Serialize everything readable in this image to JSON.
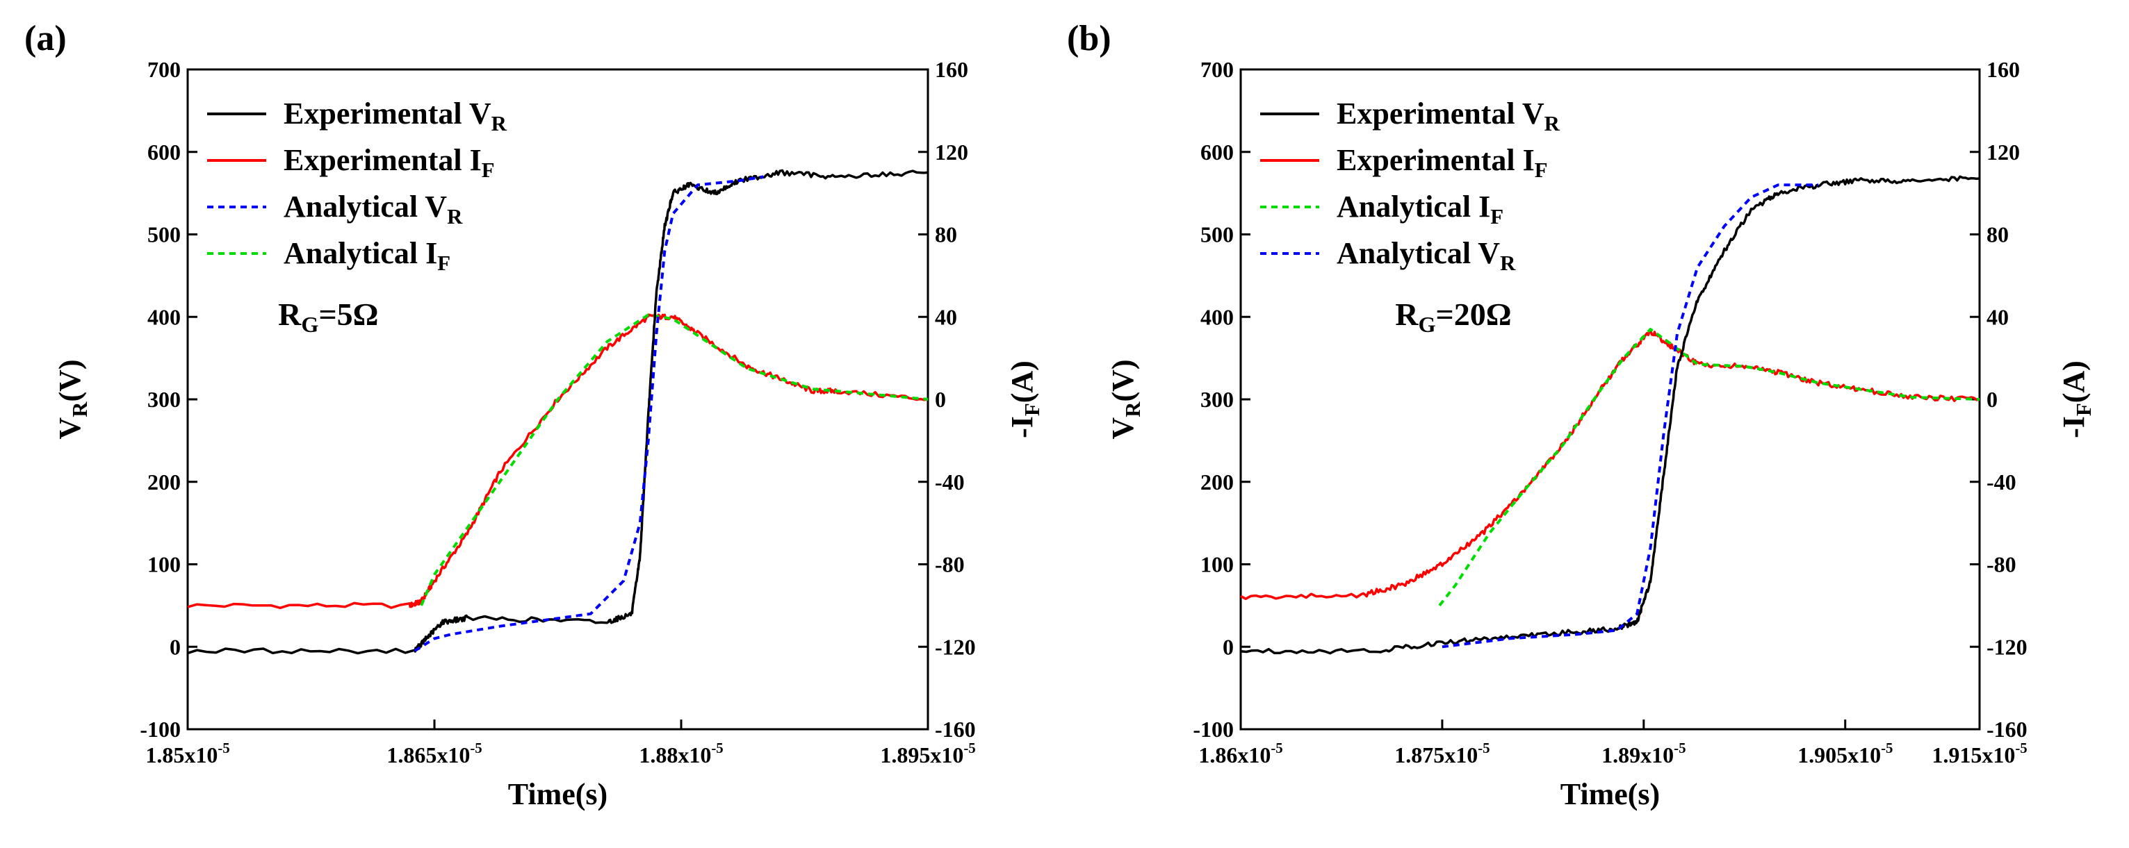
{
  "chart_data": [
    {
      "type": "line",
      "panel_label": "(a)",
      "xlabel": "Time(s)",
      "ylabel": "V",
      "ylabel_sub": "R",
      "ylabel_unit": "(V)",
      "y2label": "-I",
      "y2label_sub": "F",
      "y2label_unit": "(A)",
      "xlim": [
        1.85e-05,
        1.895e-05
      ],
      "ylim": [
        -100,
        700
      ],
      "y2lim": [
        -160,
        160
      ],
      "xticks": [
        {
          "value": 1.85e-05,
          "mant": "1.85x10",
          "exp": "-5"
        },
        {
          "value": 1.865e-05,
          "mant": "1.865x10",
          "exp": "-5"
        },
        {
          "value": 1.88e-05,
          "mant": "1.88x10",
          "exp": "-5"
        },
        {
          "value": 1.895e-05,
          "mant": "1.895x10",
          "exp": "-5"
        }
      ],
      "yticks": [
        "-100",
        "0",
        "100",
        "200",
        "300",
        "400",
        "500",
        "600",
        "700"
      ],
      "y2ticks": [
        "-160",
        "-120",
        "-80",
        "-40",
        "0",
        "40",
        "80",
        "120",
        "160"
      ],
      "annotation": {
        "main": "R",
        "sub": "G",
        "tail": "=5Ω",
        "x": 1.8555e-05,
        "y": 390
      },
      "legend_position": "top-left",
      "legend": [
        {
          "text": "Experimental V",
          "sub": "R",
          "color": "#000000",
          "dash": "solid"
        },
        {
          "text": "Experimental I",
          "sub": "F",
          "color": "#ff0000",
          "dash": "solid"
        },
        {
          "text": "Analytical V",
          "sub": "R",
          "color": "#0000ff",
          "dash": "dotted"
        },
        {
          "text": "Analytical I",
          "sub": "F",
          "color": "#00dd00",
          "dash": "dotted"
        }
      ],
      "series": [
        {
          "name": "Experimental I",
          "axis": "y2",
          "color": "#ff0000",
          "style": "solid",
          "noise": 1.2,
          "x": [
            1.85e-05,
            1.8635e-05,
            1.8642e-05,
            1.865e-05,
            1.867e-05,
            1.869e-05,
            1.8725e-05,
            1.8755e-05,
            1.878e-05,
            1.8795e-05,
            1.881e-05,
            1.884e-05,
            1.886e-05,
            1.888e-05,
            1.8895e-05,
            1.895e-05
          ],
          "y": [
            -100,
            -100,
            -98,
            -88,
            -65,
            -35,
            0,
            25,
            40,
            40,
            32,
            16,
            10,
            4,
            4,
            0
          ]
        },
        {
          "name": "Analytical I",
          "axis": "y2",
          "color": "#00dd00",
          "style": "dotted",
          "noise": 0,
          "x": [
            1.8642e-05,
            1.865e-05,
            1.8725e-05,
            1.8755e-05,
            1.878e-05,
            1.8795e-05,
            1.881e-05,
            1.884e-05,
            1.886e-05,
            1.888e-05,
            1.8895e-05,
            1.895e-05
          ],
          "y": [
            -100,
            -85,
            0,
            28,
            41,
            39,
            31,
            15,
            10,
            5,
            4,
            0
          ]
        },
        {
          "name": "Experimental V",
          "axis": "y",
          "color": "#000000",
          "style": "solid",
          "noise": 3,
          "x": [
            1.85e-05,
            1.8638e-05,
            1.8645e-05,
            1.8655e-05,
            1.867e-05,
            1.8755e-05,
            1.877e-05,
            1.8775e-05,
            1.878e-05,
            1.8785e-05,
            1.879e-05,
            1.8795e-05,
            1.8805e-05,
            1.882e-05,
            1.8835e-05,
            1.886e-05,
            1.8895e-05,
            1.895e-05
          ],
          "y": [
            -5,
            -5,
            10,
            30,
            35,
            30,
            40,
            110,
            280,
            430,
            510,
            550,
            560,
            550,
            565,
            575,
            570,
            575
          ]
        },
        {
          "name": "Analytical V",
          "axis": "y",
          "color": "#0000ff",
          "style": "dotted",
          "noise": 0,
          "x": [
            1.8638e-05,
            1.865e-05,
            1.866e-05,
            1.869e-05,
            1.8745e-05,
            1.8765e-05,
            1.8775e-05,
            1.878e-05,
            1.8785e-05,
            1.879e-05,
            1.8795e-05,
            1.881e-05,
            1.8835e-05,
            1.885e-05
          ],
          "y": [
            -5,
            10,
            15,
            25,
            40,
            80,
            150,
            250,
            380,
            480,
            525,
            560,
            565,
            570
          ]
        }
      ]
    },
    {
      "type": "line",
      "panel_label": "(b)",
      "xlabel": "Time(s)",
      "ylabel": "V",
      "ylabel_sub": "R",
      "ylabel_unit": "(V)",
      "y2label": "-I",
      "y2label_sub": "F",
      "y2label_unit": "(A)",
      "xlim": [
        1.86e-05,
        1.915e-05
      ],
      "ylim": [
        -100,
        700
      ],
      "y2lim": [
        -160,
        160
      ],
      "xticks": [
        {
          "value": 1.86e-05,
          "mant": "1.86x10",
          "exp": "-5"
        },
        {
          "value": 1.875e-05,
          "mant": "1.875x10",
          "exp": "-5"
        },
        {
          "value": 1.89e-05,
          "mant": "1.89x10",
          "exp": "-5"
        },
        {
          "value": 1.905e-05,
          "mant": "1.905x10",
          "exp": "-5"
        },
        {
          "value": 1.915e-05,
          "mant": "1.915x10",
          "exp": "-5"
        }
      ],
      "yticks": [
        "-100",
        "0",
        "100",
        "200",
        "300",
        "400",
        "500",
        "600",
        "700"
      ],
      "y2ticks": [
        "-160",
        "-120",
        "-80",
        "-40",
        "0",
        "40",
        "80",
        "120",
        "160"
      ],
      "annotation": {
        "main": "R",
        "sub": "G",
        "tail": "=20Ω",
        "x": 1.8715e-05,
        "y": 390
      },
      "legend_position": "top-left",
      "legend": [
        {
          "text": "Experimental V",
          "sub": "R",
          "color": "#000000",
          "dash": "solid"
        },
        {
          "text": "Experimental I",
          "sub": "F",
          "color": "#ff0000",
          "dash": "solid"
        },
        {
          "text": "Analytical I",
          "sub": "F",
          "color": "#00dd00",
          "dash": "dotted"
        },
        {
          "text": "Analytical V",
          "sub": "R",
          "color": "#0000ff",
          "dash": "dotted"
        }
      ],
      "series": [
        {
          "name": "Experimental I",
          "axis": "y2",
          "color": "#ff0000",
          "style": "solid",
          "noise": 1.2,
          "x": [
            1.86e-05,
            1.869e-05,
            1.872e-05,
            1.875e-05,
            1.878e-05,
            1.881e-05,
            1.884e-05,
            1.8865e-05,
            1.8885e-05,
            1.8905e-05,
            1.892e-05,
            1.894e-05,
            1.8975e-05,
            1.9e-05,
            1.903e-05,
            1.906e-05,
            1.91e-05,
            1.915e-05
          ],
          "y": [
            -96,
            -95,
            -90,
            -80,
            -65,
            -45,
            -22,
            2,
            20,
            33,
            26,
            17,
            16,
            13,
            8,
            5,
            1,
            0
          ]
        },
        {
          "name": "Analytical I",
          "axis": "y2",
          "color": "#00dd00",
          "style": "dotted",
          "noise": 0,
          "x": [
            1.8748e-05,
            1.876e-05,
            1.8785e-05,
            1.881e-05,
            1.884e-05,
            1.8865e-05,
            1.8885e-05,
            1.8905e-05,
            1.892e-05,
            1.894e-05,
            1.8975e-05,
            1.9e-05,
            1.903e-05,
            1.906e-05,
            1.91e-05,
            1.915e-05
          ],
          "y": [
            -100,
            -90,
            -65,
            -45,
            -22,
            2,
            20,
            34,
            27,
            17,
            16,
            13,
            8,
            5,
            1,
            0
          ]
        },
        {
          "name": "Experimental V",
          "axis": "y",
          "color": "#000000",
          "style": "solid",
          "noise": 3,
          "x": [
            1.86e-05,
            1.87e-05,
            1.875e-05,
            1.88e-05,
            1.885e-05,
            1.888e-05,
            1.8895e-05,
            1.8905e-05,
            1.8915e-05,
            1.8925e-05,
            1.894e-05,
            1.896e-05,
            1.898e-05,
            1.9e-05,
            1.903e-05,
            1.906e-05,
            1.91e-05,
            1.915e-05
          ],
          "y": [
            -5,
            -5,
            5,
            12,
            18,
            22,
            30,
            80,
            210,
            340,
            420,
            480,
            530,
            550,
            560,
            565,
            565,
            568
          ]
        },
        {
          "name": "Analytical V",
          "axis": "y",
          "color": "#0000ff",
          "style": "dotted",
          "noise": 0,
          "x": [
            1.875e-05,
            1.88e-05,
            1.885e-05,
            1.888e-05,
            1.8895e-05,
            1.8905e-05,
            1.8915e-05,
            1.8925e-05,
            1.894e-05,
            1.896e-05,
            1.898e-05,
            1.9e-05,
            1.903e-05
          ],
          "y": [
            0,
            10,
            15,
            20,
            40,
            120,
            260,
            380,
            460,
            510,
            545,
            560,
            560
          ]
        }
      ]
    }
  ]
}
